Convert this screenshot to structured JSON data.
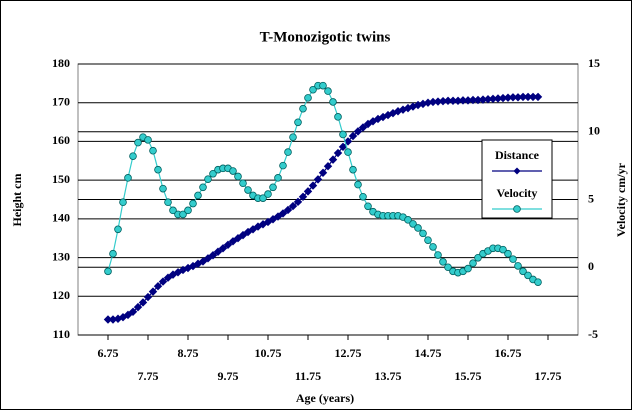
{
  "chart_data": {
    "type": "line",
    "title": "T-Monozigotic twins",
    "xlabel": "Age (years)",
    "ylabel": "Height cm",
    "y2label": "Velocity cm/yr",
    "x": [
      6.75,
      6.875,
      7,
      7.125,
      7.25,
      7.375,
      7.5,
      7.625,
      7.75,
      7.875,
      8,
      8.125,
      8.25,
      8.375,
      8.5,
      8.625,
      8.75,
      8.875,
      9,
      9.125,
      9.25,
      9.375,
      9.5,
      9.625,
      9.75,
      9.875,
      10,
      10.125,
      10.25,
      10.375,
      10.5,
      10.625,
      10.75,
      10.875,
      11,
      11.125,
      11.25,
      11.375,
      11.5,
      11.625,
      11.75,
      11.875,
      12,
      12.125,
      12.25,
      12.375,
      12.5,
      12.625,
      12.75,
      12.875,
      13,
      13.125,
      13.25,
      13.375,
      13.5,
      13.625,
      13.75,
      13.875,
      14,
      14.125,
      14.25,
      14.375,
      14.5,
      14.625,
      14.75,
      14.875,
      15,
      15.125,
      15.25,
      15.375,
      15.5,
      15.625,
      15.75,
      15.875,
      16,
      16.125,
      16.25,
      16.375,
      16.5,
      16.625,
      16.75,
      16.875,
      17,
      17.125,
      17.25,
      17.375,
      17.5
    ],
    "series": [
      {
        "name": "Distance",
        "color": "#000080",
        "marker": "diamond",
        "values": [
          114,
          114,
          114.2,
          114.6,
          115.2,
          116,
          117.2,
          118.4,
          119.8,
          121.2,
          122.6,
          123.8,
          124.8,
          125.6,
          126.2,
          126.8,
          127.3,
          127.8,
          128.4,
          129,
          129.8,
          130.6,
          131.5,
          132.4,
          133.3,
          134.2,
          135,
          135.8,
          136.6,
          137.3,
          138,
          138.6,
          139.2,
          139.9,
          140.6,
          141.4,
          142.3,
          143.3,
          144.4,
          145.7,
          147.1,
          148.6,
          150.2,
          151.9,
          153.6,
          155.3,
          157,
          158.6,
          160,
          161.4,
          162.6,
          163.6,
          164.5,
          165.2,
          165.8,
          166.3,
          166.8,
          167.3,
          167.8,
          168.2,
          168.6,
          169,
          169.4,
          169.7,
          170,
          170.2,
          170.3,
          170.4,
          170.5,
          170.5,
          170.5,
          170.6,
          170.6,
          170.7,
          170.7,
          170.8,
          170.9,
          171,
          171.1,
          171.2,
          171.3,
          171.4,
          171.4,
          171.5,
          171.5,
          171.5,
          171.5
        ]
      },
      {
        "name": "Velocity",
        "color": "#33cccc",
        "marker": "circle",
        "axis": "y2",
        "values": [
          -0.3,
          1.0,
          2.8,
          4.8,
          6.6,
          8.2,
          9.2,
          9.6,
          9.4,
          8.6,
          7.2,
          5.8,
          4.8,
          4.2,
          3.9,
          3.9,
          4.2,
          4.7,
          5.3,
          5.9,
          6.5,
          6.9,
          7.2,
          7.3,
          7.3,
          7.1,
          6.7,
          6.2,
          5.7,
          5.3,
          5.1,
          5.1,
          5.4,
          5.9,
          6.6,
          7.5,
          8.5,
          9.6,
          10.7,
          11.7,
          12.5,
          13.1,
          13.4,
          13.4,
          13.0,
          12.2,
          11.1,
          9.8,
          8.5,
          7.2,
          6.1,
          5.2,
          4.5,
          4.1,
          3.9,
          3.8,
          3.8,
          3.8,
          3.8,
          3.7,
          3.5,
          3.2,
          2.9,
          2.5,
          2.0,
          1.5,
          0.9,
          0.4,
          0.0,
          -0.3,
          -0.4,
          -0.3,
          -0.1,
          0.3,
          0.7,
          1.0,
          1.2,
          1.4,
          1.4,
          1.3,
          1.0,
          0.6,
          0.1,
          -0.3,
          -0.6,
          -0.9,
          -1.1
        ]
      }
    ],
    "xlim": [
      6,
      18.5
    ],
    "xticks": [
      6.75,
      7.75,
      8.75,
      9.75,
      10.75,
      11.75,
      12.75,
      13.75,
      14.75,
      15.75,
      16.75,
      17.75
    ],
    "ylim": [
      110,
      180
    ],
    "yticks": [
      110,
      120,
      130,
      140,
      150,
      160,
      170,
      180
    ],
    "y2lim": [
      -5,
      15
    ],
    "y2ticks": [
      -5,
      0,
      5,
      10,
      15
    ],
    "grid": true,
    "legend": "right"
  }
}
